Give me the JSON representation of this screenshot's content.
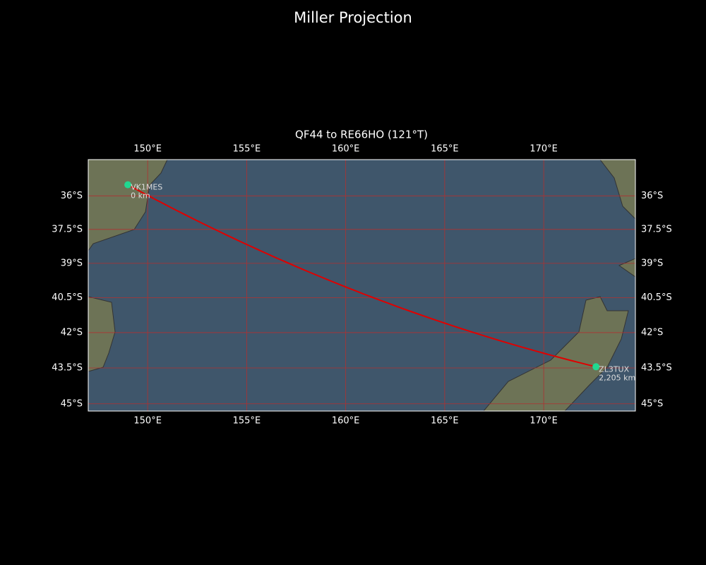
{
  "title": "Miller Projection",
  "map": {
    "subtitle": "QF44 to RE66HO (121°T)",
    "projection": "miller",
    "lonlim": [
      147.0,
      174.63
    ],
    "latlim": [
      -45.3,
      -34.36
    ],
    "lonticks": [
      {
        "value": 150,
        "label": "150°E"
      },
      {
        "value": 155,
        "label": "155°E"
      },
      {
        "value": 160,
        "label": "160°E"
      },
      {
        "value": 165,
        "label": "165°E"
      },
      {
        "value": 170,
        "label": "170°E"
      }
    ],
    "latticks": [
      {
        "value": -36,
        "label": "36°S"
      },
      {
        "value": -37.5,
        "label": "37.5°S"
      },
      {
        "value": -39,
        "label": "39°S"
      },
      {
        "value": -40.5,
        "label": "40.5°S"
      },
      {
        "value": -42,
        "label": "42°S"
      },
      {
        "value": -43.5,
        "label": "43.5°S"
      },
      {
        "value": -45,
        "label": "45°S"
      }
    ],
    "grid_color": "#b03030",
    "route_color": "#e00000",
    "marker_color": "#20d890",
    "stations": [
      {
        "name": "VK1MES",
        "lon": 149.0,
        "lat": -35.5,
        "distance": {
          "value": 0,
          "label": "0 km"
        }
      },
      {
        "name": "ZL3TUX",
        "lon": 172.64,
        "lat": -43.45,
        "distance": {
          "value": 2205,
          "label": "2,205 km"
        }
      }
    ]
  }
}
